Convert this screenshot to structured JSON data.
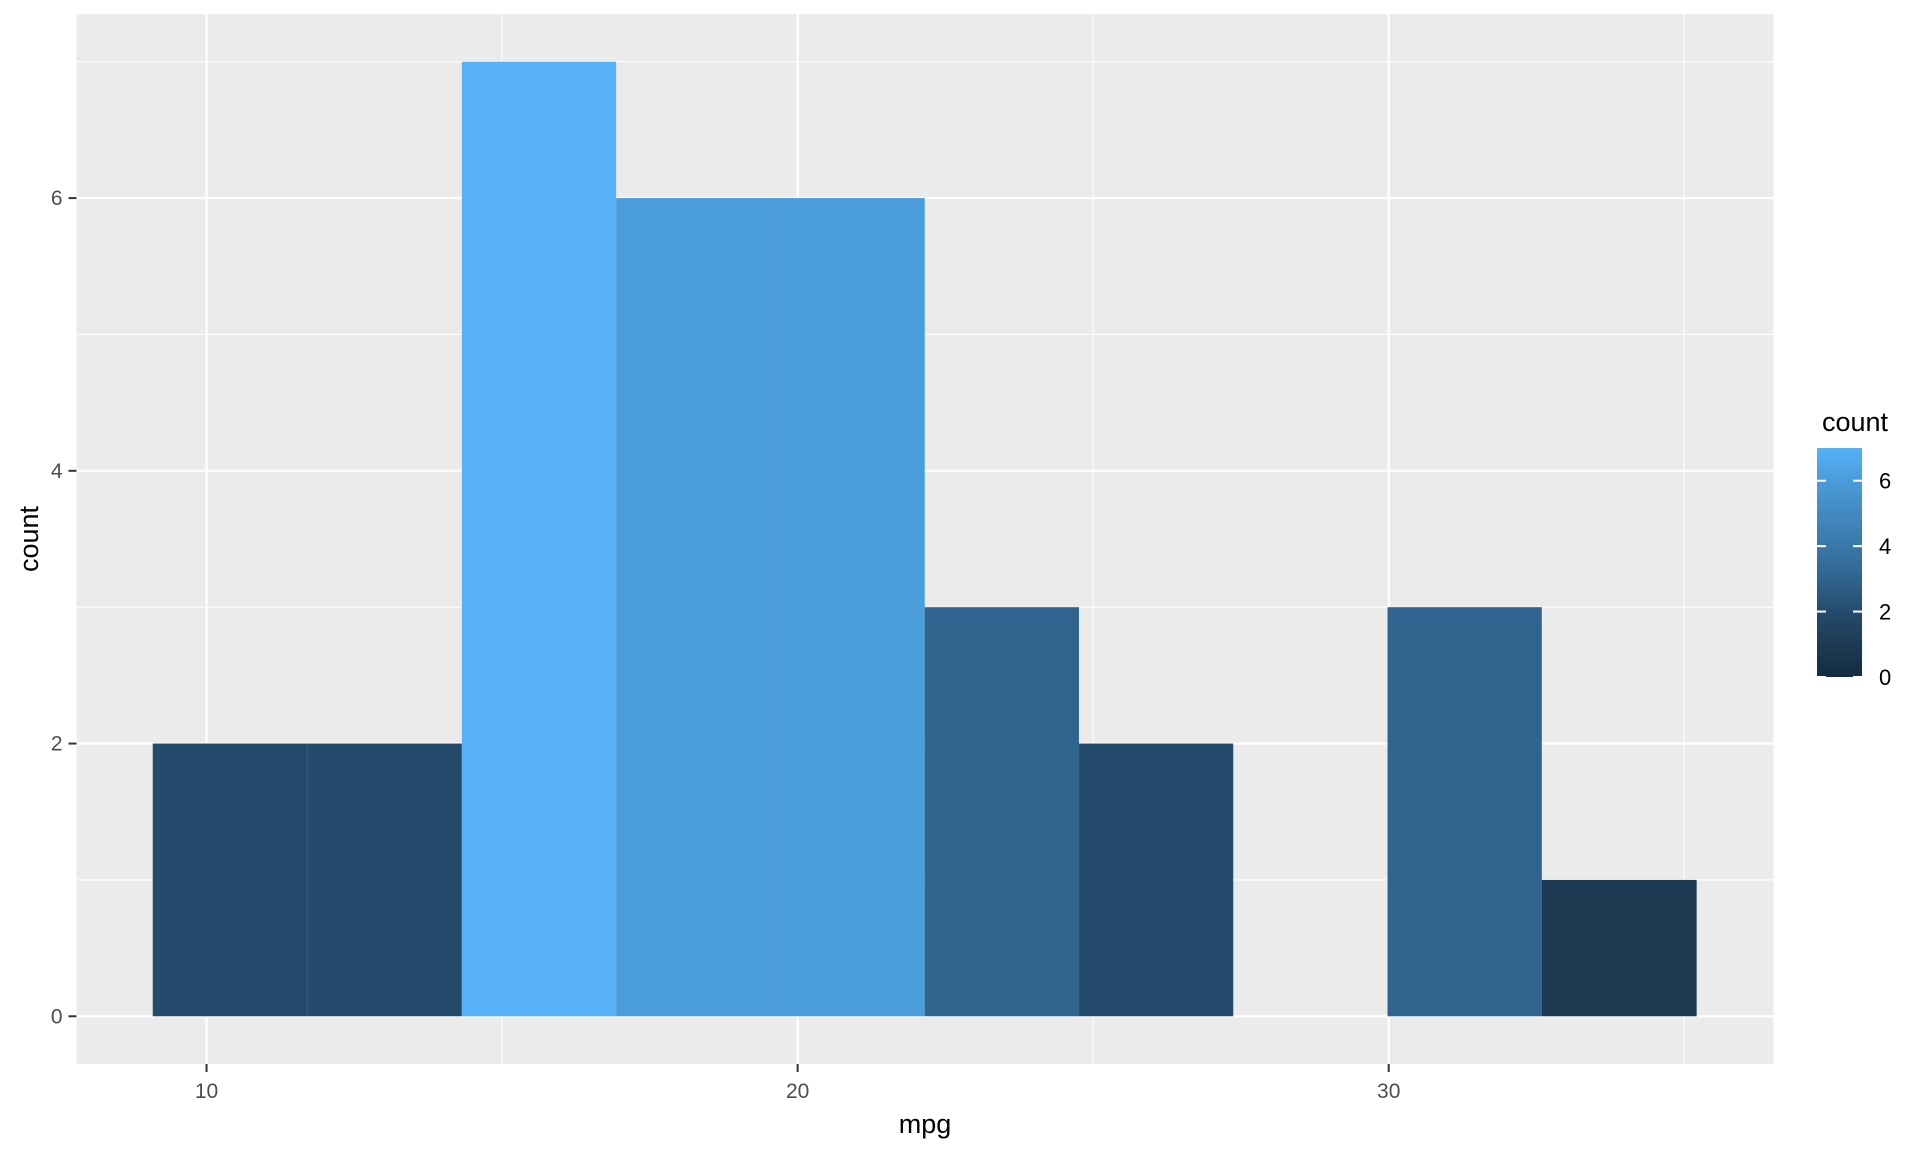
{
  "chart_data": {
    "type": "bar",
    "subtype": "histogram",
    "title": "",
    "xlabel": "mpg",
    "ylabel": "count",
    "bins": [
      {
        "x_start": 9.09,
        "x_end": 11.71,
        "count": 2
      },
      {
        "x_start": 11.71,
        "x_end": 14.32,
        "count": 2
      },
      {
        "x_start": 14.32,
        "x_end": 16.93,
        "count": 7
      },
      {
        "x_start": 16.93,
        "x_end": 19.54,
        "count": 6
      },
      {
        "x_start": 19.54,
        "x_end": 22.15,
        "count": 6
      },
      {
        "x_start": 22.15,
        "x_end": 24.76,
        "count": 3
      },
      {
        "x_start": 24.76,
        "x_end": 27.37,
        "count": 2
      },
      {
        "x_start": 27.37,
        "x_end": 29.98,
        "count": 0
      },
      {
        "x_start": 29.98,
        "x_end": 32.59,
        "count": 3
      },
      {
        "x_start": 32.59,
        "x_end": 35.21,
        "count": 1
      }
    ],
    "x_major_ticks": [
      "10",
      "20",
      "30"
    ],
    "x_major_values": [
      10,
      20,
      30
    ],
    "x_minor_gridlines": [
      15,
      25,
      35
    ],
    "y_major_ticks": [
      "0",
      "2",
      "4",
      "6"
    ],
    "y_major_values": [
      0,
      2,
      4,
      6
    ],
    "y_minor_gridlines": [
      1,
      3,
      5,
      7
    ],
    "xlim": [
      7.8,
      36.51
    ],
    "ylim": [
      -0.35,
      7.35
    ],
    "grid": true,
    "legend": {
      "title": "count",
      "position": "right",
      "tick_labels": [
        "6",
        "4",
        "2",
        "0"
      ],
      "tick_values": [
        6,
        4,
        2,
        0
      ],
      "domain": [
        0,
        7
      ]
    },
    "fill_colors_by_count": {
      "0": "#132B43",
      "1": "#1E3B54",
      "2": "#254B6C",
      "3": "#30648F",
      "4": "#3A78A8",
      "5": "#4389C1",
      "6": "#4B9CDA",
      "7": "#56B1F7"
    },
    "theme": {
      "panel_bg": "#EBEBEB",
      "grid_color": "#FFFFFF",
      "axis_text_color": "#4D4D4D",
      "axis_title_color": "#000000",
      "tick_mark_color": "#333333",
      "legend_text_color": "#000000",
      "background": "#FFFFFF"
    }
  }
}
